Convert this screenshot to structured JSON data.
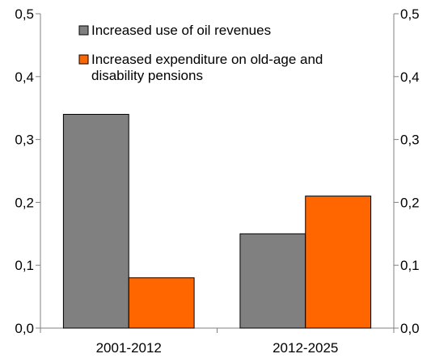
{
  "chart_data": {
    "type": "bar",
    "title": "",
    "xlabel": "",
    "ylabel": "",
    "categories": [
      "2001-2012",
      "2012-2025"
    ],
    "series": [
      {
        "name": "Increased use of oil revenues",
        "values": [
          0.34,
          0.15
        ],
        "color": "#808080"
      },
      {
        "name": "Increased expenditure on old-age and disability pensions",
        "values": [
          0.08,
          0.21
        ],
        "color": "#ff6600"
      }
    ],
    "ylim": [
      0,
      0.5
    ],
    "yticks": [
      "0,0",
      "0,1",
      "0,2",
      "0,3",
      "0,4",
      "0,5"
    ],
    "secondary_yticks": [
      "0,0",
      "0,1",
      "0,2",
      "0,3",
      "0,4",
      "0,5"
    ],
    "grid": false,
    "legend_position": "top-inside",
    "legend_lines": [
      [
        "Increased use of oil revenues"
      ],
      [
        "Increased expenditure on old-age and",
        "disability pensions"
      ]
    ]
  }
}
